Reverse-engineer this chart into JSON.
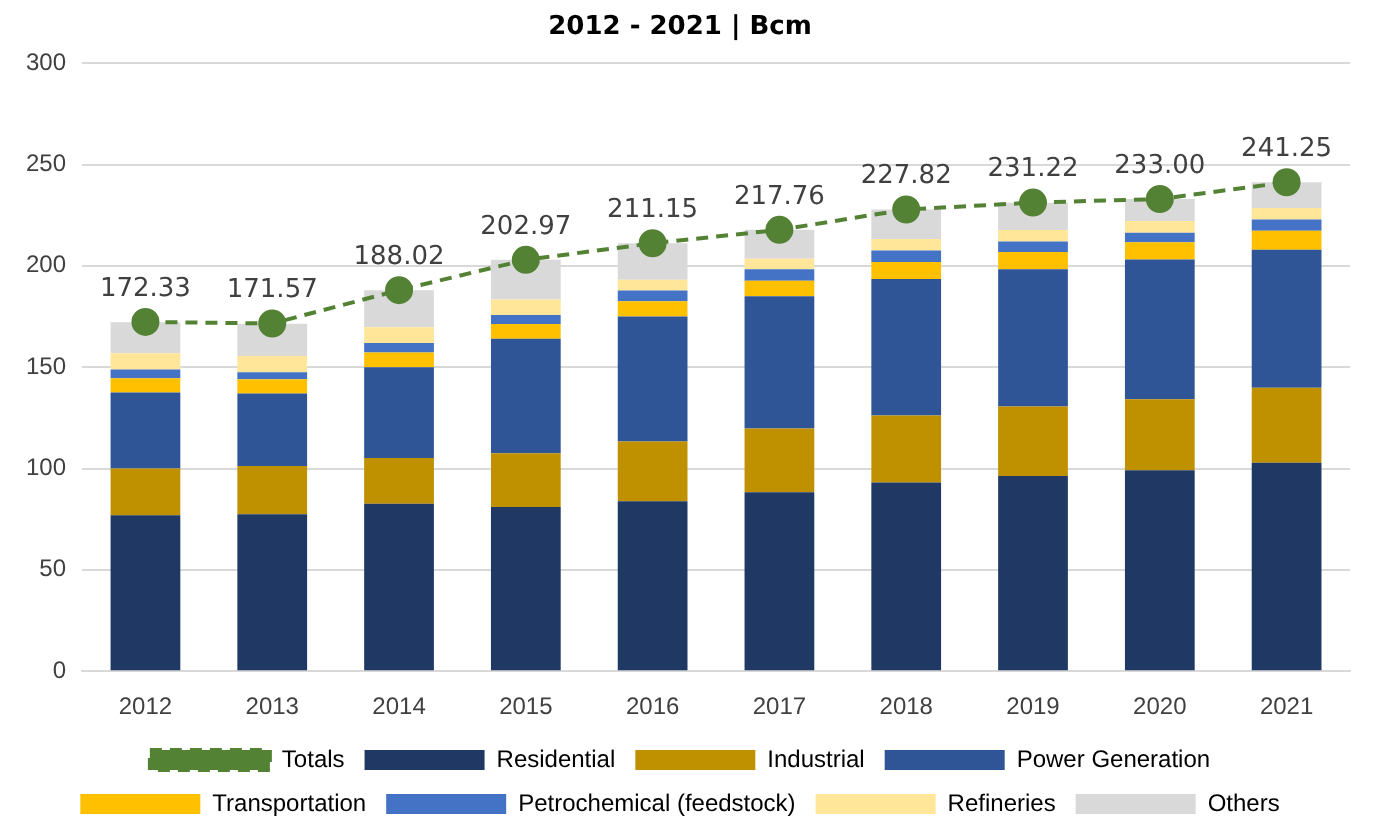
{
  "chart_data": {
    "type": "bar",
    "title": "2012 - 2021 | Bcm",
    "stacked": true,
    "categories": [
      "2012",
      "2013",
      "2014",
      "2015",
      "2016",
      "2017",
      "2018",
      "2019",
      "2020",
      "2021"
    ],
    "series": [
      {
        "name": "Residential",
        "color": "#1f3864",
        "values": [
          77,
          77.4,
          82.6,
          81,
          83.8,
          88.3,
          93.1,
          96.3,
          99.2,
          102.8
        ]
      },
      {
        "name": "Industrial",
        "color": "#bf9000",
        "values": [
          23,
          23.8,
          22.6,
          26.6,
          29.5,
          31.4,
          33.1,
          34.3,
          35,
          37.1
        ]
      },
      {
        "name": "Power Generation",
        "color": "#2f5597",
        "values": [
          37.5,
          35.8,
          44.8,
          56.4,
          61.7,
          65.3,
          67.3,
          67.7,
          68.9,
          68.1
        ]
      },
      {
        "name": "Transportation",
        "color": "#ffc000",
        "values": [
          7,
          7,
          7.2,
          7.3,
          7.6,
          7.7,
          8.4,
          8.5,
          8.5,
          9.3
        ]
      },
      {
        "name": "Petrochemical (feedstock)",
        "color": "#4472c4",
        "values": [
          4.4,
          3.5,
          4.8,
          4.5,
          5.2,
          5.6,
          5.7,
          5.2,
          4.8,
          5.6
        ]
      },
      {
        "name": "Refineries",
        "color": "#ffe699",
        "values": [
          8,
          8,
          7.7,
          7.6,
          5.3,
          5.2,
          5.6,
          5.7,
          5.7,
          5.6
        ]
      },
      {
        "name": "Others",
        "color": "#d9d9d9",
        "values": [
          15.3,
          16,
          18.3,
          19.6,
          18.1,
          14.3,
          14.6,
          13.5,
          10.9,
          12.8
        ]
      },
      {
        "name": "Totals",
        "type": "line",
        "color": "#548235",
        "line_style": "dashed",
        "marker": "circle",
        "values": [
          172.33,
          171.57,
          188.02,
          202.97,
          211.15,
          217.76,
          227.82,
          231.22,
          233.0,
          241.25
        ],
        "value_labels": [
          "172.33",
          "171.57",
          "188.02",
          "202.97",
          "211.15",
          "217.76",
          "227.82",
          "231.22",
          "233.00",
          "241.25"
        ]
      }
    ],
    "ylim": [
      0,
      300
    ],
    "yticks": [
      0,
      50,
      100,
      150,
      200,
      250,
      300
    ],
    "grid": "y",
    "legend": "bottom"
  }
}
